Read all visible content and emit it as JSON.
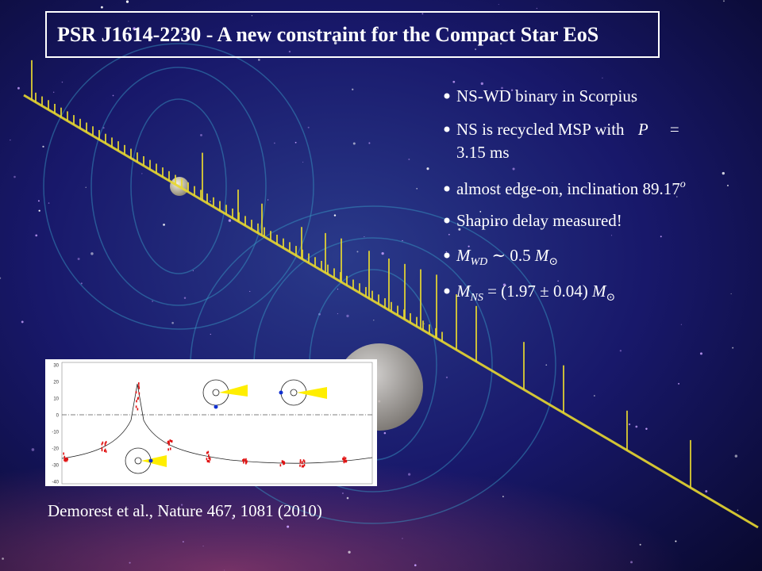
{
  "title": "PSR J1614-2230 - A new constraint for the Compact Star EoS",
  "bullets": [
    [
      "NS-WD binary in Scorpius"
    ],
    [
      "NS is recycled MSP with ",
      "P",
      " =",
      "3.15 ms"
    ],
    [
      "almost edge-on, inclination ",
      "89.17",
      "o"
    ],
    [
      "Shapiro delay measured!"
    ],
    [
      "M",
      "WD",
      " ∼ 0.5 ",
      "M",
      "⊙"
    ],
    [
      "M",
      "NS",
      " = (1.97 ± 0.04) ",
      "M",
      "⊙"
    ]
  ],
  "inset": {
    "yticks": [
      "30",
      "20",
      "10",
      "0",
      "-10",
      "-20",
      "-30",
      "-40"
    ]
  },
  "citation": "Demorest et al., Nature 467, 1081 (2010)"
}
